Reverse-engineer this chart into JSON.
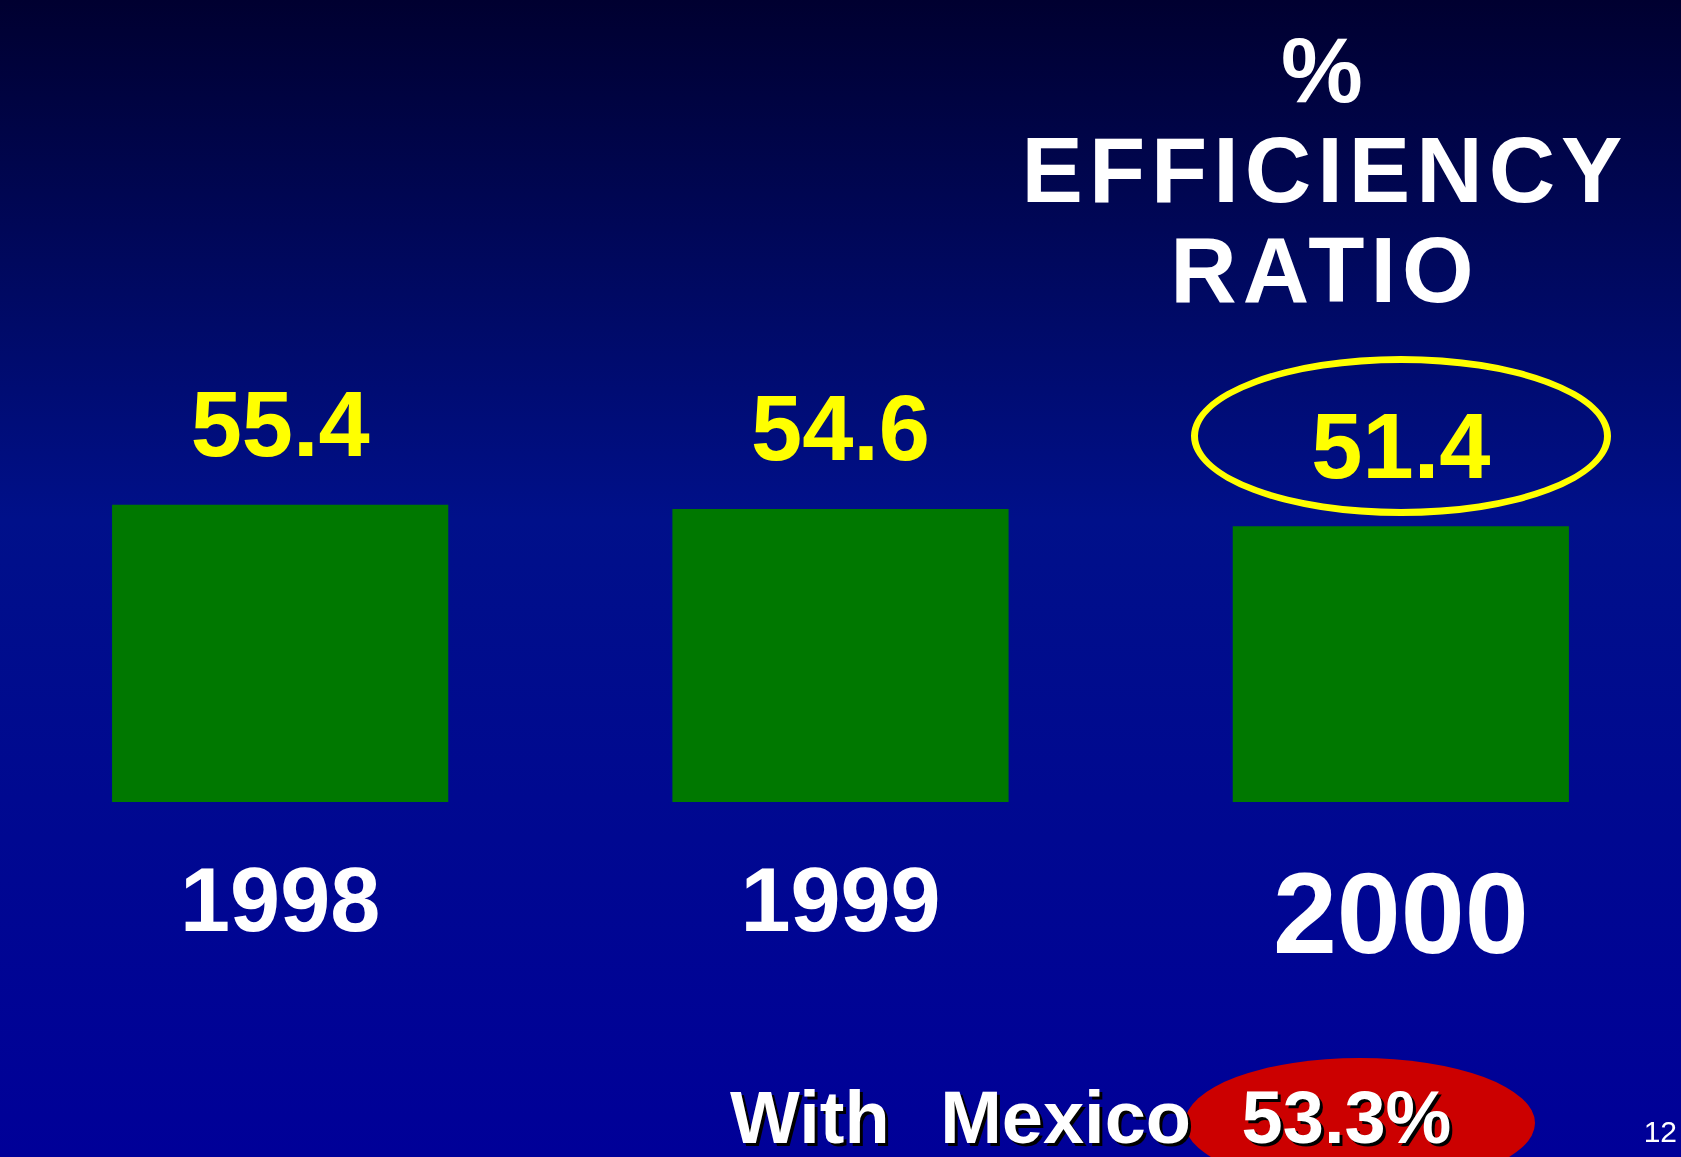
{
  "chart_data": {
    "type": "bar",
    "title": "% EFFICIENCY RATIO",
    "categories": [
      "1998",
      "1999",
      "2000"
    ],
    "values": [
      55.4,
      54.6,
      51.4
    ],
    "color": "#007800",
    "data_labels": true,
    "grid": false,
    "legend": false,
    "tick_labels": "x",
    "annotations": [
      "With Mexico 53.3%",
      "12"
    ]
  }
}
